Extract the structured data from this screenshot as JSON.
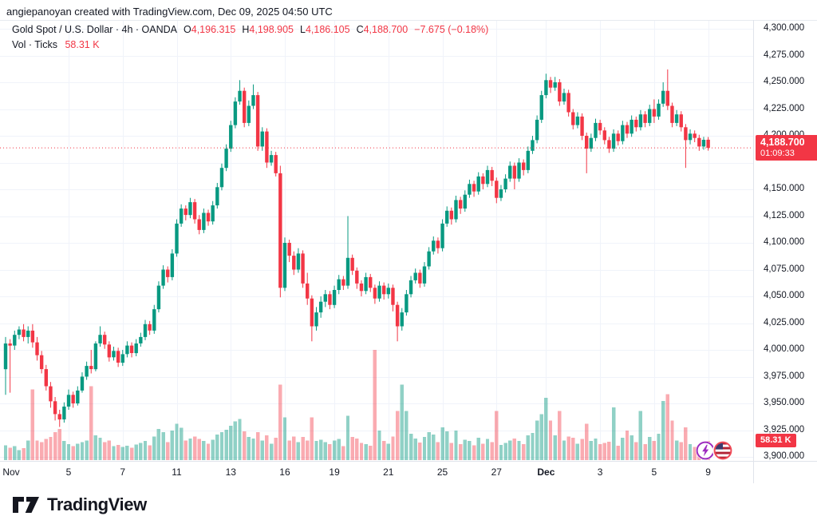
{
  "attribution": "angiepanoyan created with TradingView.com, Dec 09, 2025 04:50 UTC",
  "header": {
    "symbol": "Gold Spot / U.S. Dollar",
    "interval": "4h",
    "exchange": "OANDA",
    "separator": "·",
    "ohlc": [
      {
        "label": "O",
        "value": "4,196.315"
      },
      {
        "label": "H",
        "value": "4,198.905"
      },
      {
        "label": "L",
        "value": "4,186.105"
      },
      {
        "label": "C",
        "value": "4,188.700"
      }
    ],
    "change": "−7.675 (−0.18%)",
    "volume_label": "Vol · Ticks",
    "volume_value": "58.31 K"
  },
  "price_scale": {
    "last_price_badge": {
      "price": "4,188.700",
      "countdown": "01:09:33"
    },
    "volume_badge": "58.31 K"
  },
  "footer": {
    "brand": "TradingView"
  },
  "icons": {
    "instrument": "commodity-lightning-icon",
    "quote_currency": "us-flag-icon"
  },
  "colors": {
    "candle_up": "#089981",
    "candle_down": "#f23645",
    "volume_up": "rgba(8,153,129,0.45)",
    "volume_down": "rgba(242,54,69,0.42)",
    "grid": "#f0f3fa",
    "axis_border": "#e0e3eb",
    "text": "#131722",
    "accent_red": "#f23645",
    "badge_text": "#ffffff",
    "logo_purple": "#9d2bbf",
    "flag_ring": "#ef4a57",
    "flag_blue": "#3c3b6e",
    "flag_red": "#b22234"
  },
  "chart_data": {
    "type": "candlestick",
    "instrument": "Gold Spot / U.S. Dollar",
    "interval": "4h",
    "exchange": "OANDA",
    "legend": "candles colored up/down; lower pane = tick volume (K)",
    "price_axis": {
      "min": 3900,
      "max": 4300,
      "step": 25,
      "visible_labels": [
        {
          "text": "4,300.000",
          "value": 4300
        },
        {
          "text": "4,275.000",
          "value": 4275
        },
        {
          "text": "4,250.000",
          "value": 4250
        },
        {
          "text": "4,225.000",
          "value": 4225
        },
        {
          "text": "4,200.000",
          "value": 4200
        },
        {
          "text": "4,150.000",
          "value": 4150
        },
        {
          "text": "4,125.000",
          "value": 4125
        },
        {
          "text": "4,100.000",
          "value": 4100
        },
        {
          "text": "4,075.000",
          "value": 4075
        },
        {
          "text": "4,050.000",
          "value": 4050
        },
        {
          "text": "4,025.000",
          "value": 4025
        },
        {
          "text": "4,000.000",
          "value": 4000
        },
        {
          "text": "3,975.000",
          "value": 3975
        },
        {
          "text": "3,950.000",
          "value": 3950
        },
        {
          "text": "3,925.000",
          "value": 3925
        },
        {
          "text": "3,900.000",
          "value": 3900
        }
      ]
    },
    "time_axis_ticks": [
      {
        "index": 0,
        "label": "Nov",
        "bold": false
      },
      {
        "index": 14,
        "label": "5",
        "bold": false
      },
      {
        "index": 26,
        "label": "7",
        "bold": false
      },
      {
        "index": 38,
        "label": "11",
        "bold": false
      },
      {
        "index": 50,
        "label": "13",
        "bold": false
      },
      {
        "index": 62,
        "label": "16",
        "bold": false
      },
      {
        "index": 73,
        "label": "19",
        "bold": false
      },
      {
        "index": 85,
        "label": "21",
        "bold": false
      },
      {
        "index": 97,
        "label": "25",
        "bold": false
      },
      {
        "index": 109,
        "label": "27",
        "bold": false
      },
      {
        "index": 120,
        "label": "Dec",
        "bold": true
      },
      {
        "index": 132,
        "label": "3",
        "bold": false
      },
      {
        "index": 144,
        "label": "5",
        "bold": false
      },
      {
        "index": 156,
        "label": "9",
        "bold": false
      }
    ],
    "last_price": 4188.7,
    "last_volume_k": 58.31,
    "candles": [
      [
        3982,
        4012,
        3958,
        4006,
        45
      ],
      [
        4006,
        4010,
        3960,
        4004,
        38
      ],
      [
        4004,
        4018,
        4000,
        4014,
        42
      ],
      [
        4014,
        4022,
        4010,
        4019,
        30
      ],
      [
        4019,
        4024,
        4008,
        4012,
        36
      ],
      [
        4012,
        4022,
        4006,
        4018,
        60
      ],
      [
        4018,
        4024,
        4002,
        4007,
        215
      ],
      [
        4007,
        4012,
        3990,
        3995,
        60
      ],
      [
        3995,
        3999,
        3978,
        3982,
        55
      ],
      [
        3982,
        3986,
        3962,
        3966,
        64
      ],
      [
        3966,
        3970,
        3946,
        3952,
        70
      ],
      [
        3952,
        3956,
        3934,
        3940,
        85
      ],
      [
        3940,
        3944,
        3928,
        3935,
        95
      ],
      [
        3935,
        3951,
        3932,
        3947,
        58
      ],
      [
        3947,
        3963,
        3944,
        3958,
        48
      ],
      [
        3958,
        3961,
        3946,
        3950,
        42
      ],
      [
        3950,
        3966,
        3948,
        3962,
        50
      ],
      [
        3962,
        3979,
        3960,
        3975,
        55
      ],
      [
        3975,
        3989,
        3972,
        3985,
        60
      ],
      [
        3985,
        4000,
        3978,
        3982,
        225
      ],
      [
        3982,
        4008,
        3980,
        4006,
        75
      ],
      [
        4006,
        4022,
        4003,
        4014,
        68
      ],
      [
        4014,
        4017,
        4001,
        4005,
        55
      ],
      [
        4005,
        4008,
        3989,
        3993,
        60
      ],
      [
        3993,
        4003,
        3990,
        3999,
        42
      ],
      [
        3999,
        4002,
        3984,
        3988,
        46
      ],
      [
        3988,
        4000,
        3985,
        3996,
        40
      ],
      [
        3996,
        4008,
        3993,
        4004,
        44
      ],
      [
        4004,
        4007,
        3993,
        3997,
        38
      ],
      [
        3997,
        4010,
        3994,
        4006,
        47
      ],
      [
        4006,
        4016,
        4003,
        4012,
        52
      ],
      [
        4012,
        4028,
        4009,
        4024,
        58
      ],
      [
        4024,
        4027,
        4014,
        4018,
        45
      ],
      [
        4018,
        4042,
        4015,
        4038,
        72
      ],
      [
        4038,
        4064,
        4035,
        4060,
        95
      ],
      [
        4060,
        4079,
        4057,
        4075,
        85
      ],
      [
        4075,
        4078,
        4063,
        4068,
        55
      ],
      [
        4068,
        4094,
        4065,
        4090,
        90
      ],
      [
        4090,
        4122,
        4087,
        4118,
        110
      ],
      [
        4118,
        4136,
        4115,
        4132,
        98
      ],
      [
        4132,
        4135,
        4121,
        4126,
        60
      ],
      [
        4126,
        4142,
        4123,
        4138,
        66
      ],
      [
        4138,
        4141,
        4118,
        4122,
        72
      ],
      [
        4122,
        4126,
        4108,
        4112,
        64
      ],
      [
        4112,
        4132,
        4109,
        4128,
        58
      ],
      [
        4128,
        4131,
        4116,
        4120,
        50
      ],
      [
        4120,
        4139,
        4117,
        4135,
        62
      ],
      [
        4135,
        4156,
        4132,
        4152,
        78
      ],
      [
        4152,
        4174,
        4149,
        4170,
        85
      ],
      [
        4170,
        4192,
        4167,
        4188,
        92
      ],
      [
        4188,
        4214,
        4185,
        4210,
        105
      ],
      [
        4210,
        4236,
        4207,
        4232,
        118
      ],
      [
        4232,
        4252,
        4229,
        4242,
        125
      ],
      [
        4242,
        4245,
        4208,
        4212,
        88
      ],
      [
        4212,
        4233,
        4209,
        4228,
        70
      ],
      [
        4228,
        4248,
        4225,
        4238,
        66
      ],
      [
        4238,
        4241,
        4186,
        4190,
        85
      ],
      [
        4190,
        4208,
        4186,
        4204,
        60
      ],
      [
        4204,
        4207,
        4170,
        4175,
        75
      ],
      [
        4175,
        4186,
        4172,
        4182,
        50
      ],
      [
        4182,
        4185,
        4162,
        4165,
        68
      ],
      [
        4165,
        4172,
        4049,
        4058,
        230
      ],
      [
        4058,
        4105,
        4055,
        4100,
        130
      ],
      [
        4100,
        4103,
        4082,
        4088,
        60
      ],
      [
        4088,
        4092,
        4070,
        4075,
        72
      ],
      [
        4075,
        4095,
        4072,
        4090,
        55
      ],
      [
        4090,
        4093,
        4058,
        4062,
        70
      ],
      [
        4062,
        4072,
        4042,
        4048,
        60
      ],
      [
        4048,
        4051,
        4008,
        4022,
        130
      ],
      [
        4022,
        4040,
        4018,
        4035,
        58
      ],
      [
        4035,
        4050,
        4030,
        4045,
        62
      ],
      [
        4045,
        4056,
        4040,
        4052,
        55
      ],
      [
        4052,
        4055,
        4038,
        4042,
        48
      ],
      [
        4042,
        4060,
        4039,
        4056,
        60
      ],
      [
        4056,
        4070,
        4052,
        4066,
        64
      ],
      [
        4066,
        4069,
        4056,
        4060,
        42
      ],
      [
        4060,
        4125,
        4057,
        4086,
        135
      ],
      [
        4086,
        4089,
        4070,
        4074,
        70
      ],
      [
        4074,
        4077,
        4057,
        4062,
        66
      ],
      [
        4062,
        4065,
        4050,
        4055,
        52
      ],
      [
        4055,
        4072,
        4052,
        4068,
        48
      ],
      [
        4068,
        4071,
        4054,
        4058,
        44
      ],
      [
        4058,
        4061,
        4043,
        4048,
        335
      ],
      [
        4048,
        4064,
        4045,
        4060,
        90
      ],
      [
        4060,
        4063,
        4047,
        4052,
        58
      ],
      [
        4052,
        4062,
        4048,
        4058,
        50
      ],
      [
        4058,
        4061,
        4036,
        4042,
        72
      ],
      [
        4042,
        4045,
        4008,
        4022,
        150
      ],
      [
        4022,
        4039,
        4018,
        4035,
        230
      ],
      [
        4035,
        4056,
        4032,
        4052,
        150
      ],
      [
        4052,
        4069,
        4049,
        4065,
        80
      ],
      [
        4065,
        4076,
        4062,
        4072,
        66
      ],
      [
        4072,
        4075,
        4058,
        4062,
        54
      ],
      [
        4062,
        4082,
        4059,
        4078,
        70
      ],
      [
        4078,
        4096,
        4075,
        4092,
        85
      ],
      [
        4092,
        4106,
        4089,
        4102,
        78
      ],
      [
        4102,
        4105,
        4090,
        4095,
        55
      ],
      [
        4095,
        4122,
        4092,
        4118,
        100
      ],
      [
        4118,
        4134,
        4115,
        4130,
        88
      ],
      [
        4130,
        4133,
        4117,
        4122,
        52
      ],
      [
        4122,
        4144,
        4119,
        4140,
        90
      ],
      [
        4140,
        4143,
        4127,
        4132,
        48
      ],
      [
        4132,
        4149,
        4129,
        4145,
        62
      ],
      [
        4145,
        4159,
        4142,
        4155,
        58
      ],
      [
        4155,
        4158,
        4143,
        4148,
        45
      ],
      [
        4148,
        4166,
        4145,
        4162,
        68
      ],
      [
        4162,
        4165,
        4150,
        4155,
        50
      ],
      [
        4155,
        4172,
        4152,
        4168,
        64
      ],
      [
        4168,
        4171,
        4153,
        4158,
        55
      ],
      [
        4158,
        4161,
        4137,
        4142,
        150
      ],
      [
        4142,
        4154,
        4139,
        4150,
        46
      ],
      [
        4150,
        4164,
        4147,
        4160,
        52
      ],
      [
        4160,
        4176,
        4157,
        4172,
        60
      ],
      [
        4172,
        4175,
        4150,
        4160,
        66
      ],
      [
        4160,
        4179,
        4157,
        4175,
        58
      ],
      [
        4175,
        4178,
        4163,
        4168,
        48
      ],
      [
        4168,
        4190,
        4165,
        4186,
        75
      ],
      [
        4186,
        4200,
        4183,
        4196,
        82
      ],
      [
        4196,
        4219,
        4193,
        4215,
        120
      ],
      [
        4215,
        4242,
        4212,
        4238,
        140
      ],
      [
        4238,
        4258,
        4235,
        4252,
        190
      ],
      [
        4252,
        4255,
        4240,
        4245,
        120
      ],
      [
        4245,
        4255,
        4242,
        4250,
        75
      ],
      [
        4250,
        4253,
        4228,
        4232,
        150
      ],
      [
        4232,
        4244,
        4229,
        4240,
        60
      ],
      [
        4240,
        4243,
        4218,
        4222,
        72
      ],
      [
        4222,
        4225,
        4206,
        4210,
        68
      ],
      [
        4210,
        4222,
        4207,
        4218,
        50
      ],
      [
        4218,
        4221,
        4196,
        4200,
        64
      ],
      [
        4200,
        4203,
        4165,
        4188,
        110
      ],
      [
        4188,
        4202,
        4185,
        4198,
        58
      ],
      [
        4198,
        4216,
        4195,
        4212,
        66
      ],
      [
        4212,
        4215,
        4201,
        4205,
        48
      ],
      [
        4205,
        4208,
        4192,
        4196,
        52
      ],
      [
        4196,
        4199,
        4184,
        4188,
        56
      ],
      [
        4188,
        4206,
        4185,
        4202,
        160
      ],
      [
        4202,
        4205,
        4191,
        4195,
        44
      ],
      [
        4195,
        4214,
        4192,
        4210,
        68
      ],
      [
        4210,
        4213,
        4198,
        4202,
        90
      ],
      [
        4202,
        4219,
        4199,
        4215,
        75
      ],
      [
        4215,
        4218,
        4204,
        4208,
        55
      ],
      [
        4208,
        4224,
        4205,
        4220,
        150
      ],
      [
        4220,
        4223,
        4208,
        4212,
        48
      ],
      [
        4212,
        4229,
        4209,
        4225,
        70
      ],
      [
        4225,
        4234,
        4212,
        4218,
        58
      ],
      [
        4218,
        4234,
        4215,
        4230,
        80
      ],
      [
        4230,
        4250,
        4227,
        4242,
        180
      ],
      [
        4242,
        4262,
        4224,
        4228,
        200
      ],
      [
        4228,
        4231,
        4208,
        4212,
        120
      ],
      [
        4212,
        4224,
        4209,
        4220,
        60
      ],
      [
        4220,
        4223,
        4204,
        4208,
        55
      ],
      [
        4208,
        4211,
        4170,
        4196,
        100
      ],
      [
        4196,
        4206,
        4192,
        4202,
        48
      ],
      [
        4202,
        4205,
        4194,
        4198,
        40
      ],
      [
        4198,
        4201,
        4186,
        4190,
        44
      ],
      [
        4190,
        4199,
        4187,
        4196.3,
        38
      ],
      [
        4196.315,
        4198.905,
        4186.105,
        4188.7,
        58.31
      ]
    ]
  }
}
